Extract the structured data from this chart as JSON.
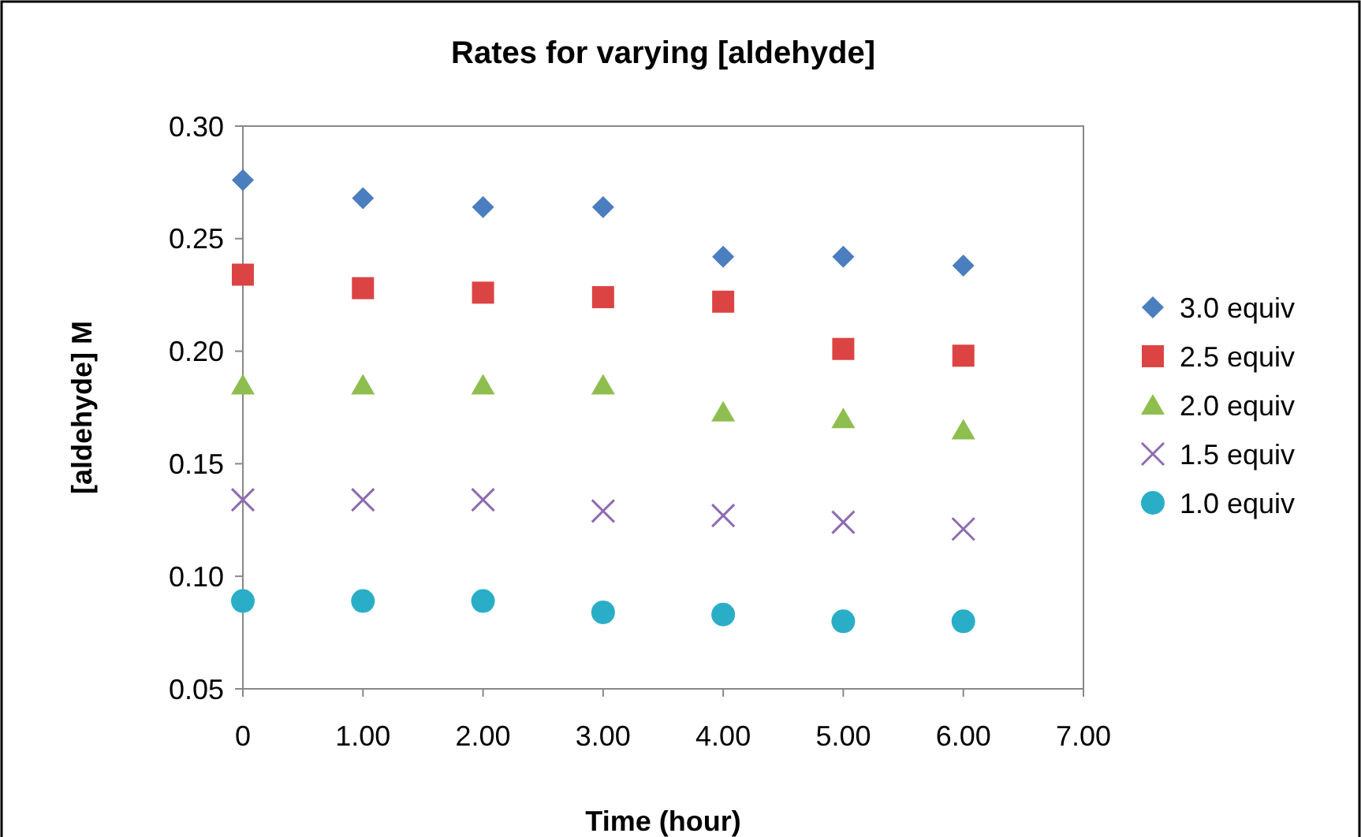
{
  "chart_data": {
    "type": "scatter",
    "title": "Rates for varying [aldehyde]",
    "xlabel": "Time (hour)",
    "ylabel": "[aldehyde] M",
    "x": [
      0,
      1,
      2,
      3,
      4,
      5,
      6
    ],
    "xlim": [
      0,
      7
    ],
    "xticks": [
      {
        "value": 0,
        "label": "0"
      },
      {
        "value": 1,
        "label": "1.00"
      },
      {
        "value": 2,
        "label": "2.00"
      },
      {
        "value": 3,
        "label": "3.00"
      },
      {
        "value": 4,
        "label": "4.00"
      },
      {
        "value": 5,
        "label": "5.00"
      },
      {
        "value": 6,
        "label": "6.00"
      },
      {
        "value": 7,
        "label": "7.00"
      }
    ],
    "ylim": [
      0.05,
      0.3
    ],
    "yticks": [
      {
        "value": 0.05,
        "label": "0.05"
      },
      {
        "value": 0.1,
        "label": "0.10"
      },
      {
        "value": 0.15,
        "label": "0.15"
      },
      {
        "value": 0.2,
        "label": "0.20"
      },
      {
        "value": 0.25,
        "label": "0.25"
      },
      {
        "value": 0.3,
        "label": "0.30"
      }
    ],
    "grid": false,
    "legend": "right",
    "series": [
      {
        "name": "3.0 equiv",
        "color": "#4a7ebf",
        "marker": "diamond",
        "values": [
          0.276,
          0.268,
          0.264,
          0.264,
          0.242,
          0.242,
          0.238
        ]
      },
      {
        "name": "2.5 equiv",
        "color": "#dc4444",
        "marker": "square",
        "values": [
          0.234,
          0.228,
          0.226,
          0.224,
          0.222,
          0.201,
          0.198
        ]
      },
      {
        "name": "2.0 equiv",
        "color": "#8ebe4f",
        "marker": "triangle",
        "values": [
          0.185,
          0.185,
          0.185,
          0.185,
          0.173,
          0.17,
          0.165
        ]
      },
      {
        "name": "1.5 equiv",
        "color": "#8e6bb0",
        "marker": "cross",
        "values": [
          0.134,
          0.134,
          0.134,
          0.129,
          0.127,
          0.124,
          0.121
        ]
      },
      {
        "name": "1.0 equiv",
        "color": "#2aaec8",
        "marker": "circle",
        "values": [
          0.089,
          0.089,
          0.089,
          0.084,
          0.083,
          0.08,
          0.08
        ]
      }
    ]
  }
}
